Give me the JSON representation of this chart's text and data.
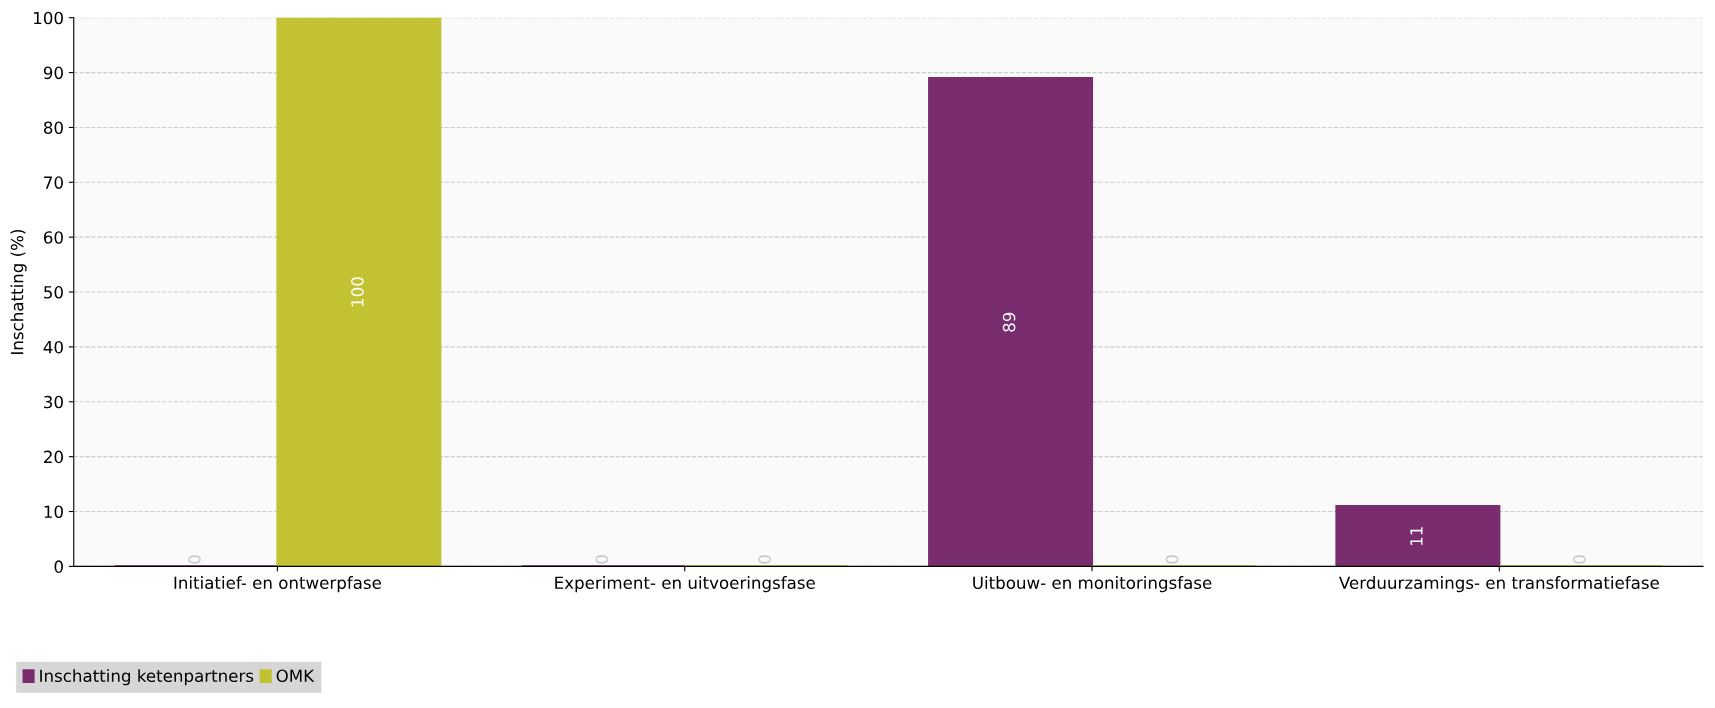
{
  "chart_data": {
    "type": "bar",
    "ylabel": "Inschatting (%)",
    "categories": [
      "Initiatief- en ontwerpfase",
      "Experiment- en uitvoeringsfase",
      "Uitbouw- en monitoringsfase",
      "Verduurzamings- en transformatiefase"
    ],
    "series": [
      {
        "name": "Inschatting ketenpartners",
        "color": "#7a2d6e",
        "values": [
          0,
          0,
          89,
          11
        ]
      },
      {
        "name": "OMK",
        "color": "#c2c232",
        "values": [
          100,
          0,
          0,
          0
        ]
      }
    ],
    "ylim": [
      0,
      100
    ],
    "yticks": [
      0,
      10,
      20,
      30,
      40,
      50,
      60,
      70,
      80,
      90,
      100
    ],
    "grid": "y",
    "legend": "bottom left",
    "data_labels": true
  }
}
